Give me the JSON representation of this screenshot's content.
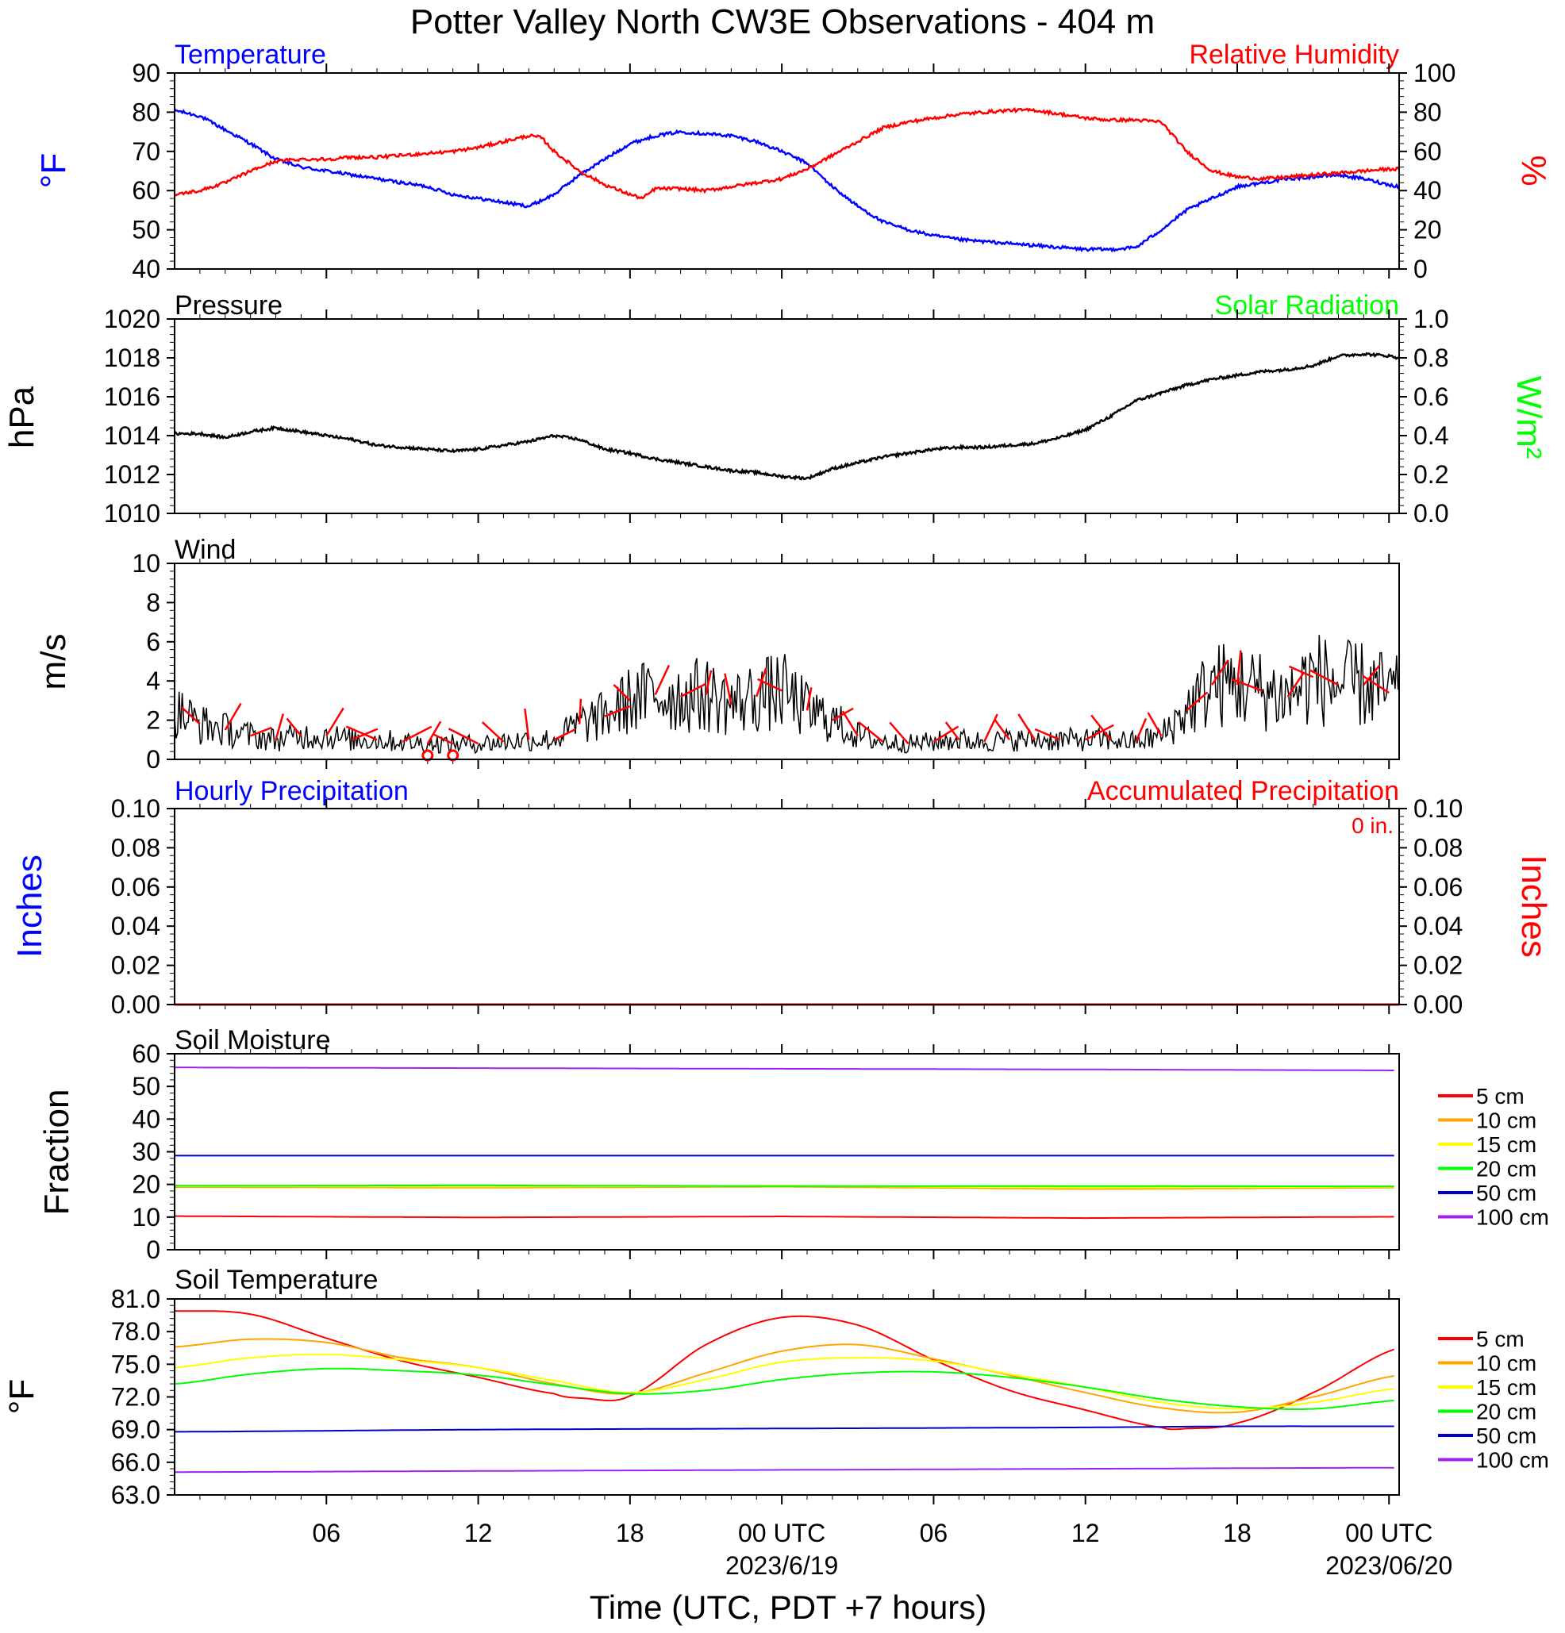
{
  "title": "Potter Valley North CW3E Observations - 404 m",
  "xlabel": "Time (UTC, PDT +7 hours)",
  "x_ticks": [
    {
      "hour": 6,
      "label": "06"
    },
    {
      "hour": 12,
      "label": "12"
    },
    {
      "hour": 18,
      "label": "18"
    },
    {
      "hour": 24,
      "label": "00 UTC"
    },
    {
      "hour": 30,
      "label": "06"
    },
    {
      "hour": 36,
      "label": "12"
    },
    {
      "hour": 42,
      "label": "18"
    },
    {
      "hour": 48,
      "label": "00 UTC"
    }
  ],
  "date_labels": [
    {
      "hour": 24,
      "label": "2023/6/19"
    },
    {
      "hour": 48,
      "label": "2023/06/20"
    }
  ],
  "colors": {
    "temperature": "#0000ff",
    "humidity": "#ff0000",
    "pressure": "#000000",
    "solar": "#00ff00",
    "wind_barb": "#ff0000",
    "hourly_precip": "#0000ff",
    "accum_precip": "#ff0000"
  },
  "panels": {
    "temp_rh": {
      "left_title": "Temperature",
      "right_title": "Relative Humidity",
      "left_axis_label": "°F",
      "right_axis_label": "%",
      "left_ticks": [
        "40",
        "50",
        "60",
        "70",
        "80",
        "90"
      ],
      "right_ticks": [
        "0",
        "20",
        "40",
        "60",
        "80",
        "100"
      ]
    },
    "pressure": {
      "left_title": "Pressure",
      "right_title": "Solar Radiation",
      "left_axis_label": "hPa",
      "right_axis_label": "W/m²",
      "left_ticks": [
        "1010",
        "1012",
        "1014",
        "1016",
        "1018",
        "1020"
      ],
      "right_ticks": [
        "0.0",
        "0.2",
        "0.4",
        "0.6",
        "0.8",
        "1.0"
      ]
    },
    "wind": {
      "left_title": "Wind",
      "left_axis_label": "m/s",
      "left_ticks": [
        "0",
        "2",
        "4",
        "6",
        "8",
        "10"
      ]
    },
    "precip": {
      "left_title": "Hourly Precipitation",
      "right_title": "Accumulated Precipitation",
      "accum_total": "0 in.",
      "left_axis_label": "Inches",
      "right_axis_label": "Inches",
      "left_ticks": [
        "0.00",
        "0.02",
        "0.04",
        "0.06",
        "0.08",
        "0.10"
      ],
      "right_ticks": [
        "0.00",
        "0.02",
        "0.04",
        "0.06",
        "0.08",
        "0.10"
      ]
    },
    "soil_moisture": {
      "left_title": "Soil Moisture",
      "left_axis_label": "Fraction",
      "left_ticks": [
        "0",
        "10",
        "20",
        "30",
        "40",
        "50",
        "60"
      ],
      "legend": [
        {
          "label": "5 cm",
          "color": "#ff0000"
        },
        {
          "label": "10 cm",
          "color": "#ffa500"
        },
        {
          "label": "15 cm",
          "color": "#ffff00"
        },
        {
          "label": "20 cm",
          "color": "#00ff00"
        },
        {
          "label": "50 cm",
          "color": "#0000cd"
        },
        {
          "label": "100 cm",
          "color": "#a020f0"
        }
      ]
    },
    "soil_temp": {
      "left_title": "Soil Temperature",
      "left_axis_label": "°F",
      "left_ticks": [
        "63.0",
        "66.0",
        "69.0",
        "72.0",
        "75.0",
        "78.0",
        "81.0"
      ],
      "legend": [
        {
          "label": "5 cm",
          "color": "#ff0000"
        },
        {
          "label": "10 cm",
          "color": "#ffa500"
        },
        {
          "label": "15 cm",
          "color": "#ffff00"
        },
        {
          "label": "20 cm",
          "color": "#00ff00"
        },
        {
          "label": "50 cm",
          "color": "#0000cd"
        },
        {
          "label": "100 cm",
          "color": "#a020f0"
        }
      ]
    }
  },
  "chart_data": [
    {
      "type": "line",
      "title": "Temperature / Relative Humidity",
      "x_range_hours": [
        0,
        48.4
      ],
      "ylim_left": [
        40,
        90
      ],
      "ylim_right": [
        0,
        100
      ],
      "series": [
        {
          "name": "Temperature",
          "axis": "left",
          "unit": "°F",
          "color": "#0000ff",
          "x": [
            0,
            1,
            2,
            3,
            4,
            5,
            6,
            7,
            8,
            9,
            10,
            11,
            12,
            13,
            14,
            15,
            16,
            17,
            18,
            19,
            20,
            21,
            22,
            23,
            24,
            25,
            26,
            27,
            28,
            29,
            30,
            31,
            32,
            33,
            34,
            35,
            36,
            37,
            38,
            39,
            40,
            41,
            42,
            43,
            44,
            45,
            46,
            47,
            48,
            48.4
          ],
          "y": [
            80.5,
            79,
            75.5,
            72,
            68,
            66,
            65,
            64,
            63,
            62,
            61,
            59,
            58,
            57,
            56,
            59,
            64,
            68,
            72,
            74,
            75,
            74.5,
            74,
            72.5,
            70,
            67,
            61,
            56,
            52,
            50,
            48.5,
            47.5,
            47,
            46.5,
            46,
            45.5,
            45,
            45,
            45.5,
            50,
            55,
            58,
            61,
            62,
            63,
            63.5,
            64,
            63,
            61.5,
            61
          ]
        },
        {
          "name": "Relative Humidity",
          "axis": "right",
          "unit": "%",
          "color": "#ff0000",
          "x": [
            0,
            1,
            2,
            3,
            4,
            5,
            6,
            7,
            8,
            9,
            10,
            11,
            12,
            13,
            14,
            14.5,
            15,
            16,
            17,
            18,
            18.5,
            19,
            20,
            21,
            22,
            23,
            24,
            25,
            26,
            27,
            28,
            29,
            30,
            31,
            32,
            33,
            34,
            35,
            36,
            37,
            38,
            39,
            40,
            41,
            42,
            43,
            44,
            45,
            46,
            47,
            48,
            48.4
          ],
          "y": [
            38,
            40,
            44,
            50,
            55,
            56,
            56,
            57,
            57,
            58,
            59,
            60,
            62,
            65,
            68,
            67,
            60,
            50,
            43,
            38,
            36,
            41,
            41,
            40,
            42,
            44,
            46,
            51,
            58,
            65,
            72,
            75,
            77,
            79,
            80,
            81,
            81,
            79,
            77,
            76,
            76,
            75,
            60,
            50,
            47,
            46,
            47,
            48,
            49,
            50,
            51,
            51
          ]
        }
      ]
    },
    {
      "type": "line",
      "title": "Pressure / Solar Radiation",
      "x_range_hours": [
        0,
        48.4
      ],
      "ylim_left": [
        1010,
        1020
      ],
      "ylim_right": [
        0.0,
        1.0
      ],
      "series": [
        {
          "name": "Pressure",
          "axis": "left",
          "unit": "hPa",
          "color": "#000000",
          "x": [
            0,
            1,
            2,
            3,
            4,
            5,
            6,
            7,
            8,
            9,
            10,
            11,
            12,
            13,
            14,
            15,
            16,
            17,
            18,
            19,
            20,
            21,
            22,
            23,
            24,
            25,
            26,
            27,
            28,
            29,
            30,
            31,
            32,
            33,
            34,
            35,
            36,
            37,
            38,
            39,
            40,
            41,
            42,
            43,
            44,
            45,
            46,
            47,
            48,
            48.4
          ],
          "y": [
            1014.1,
            1014.1,
            1013.9,
            1014.2,
            1014.4,
            1014.2,
            1014.0,
            1013.8,
            1013.5,
            1013.4,
            1013.3,
            1013.2,
            1013.3,
            1013.5,
            1013.7,
            1014.0,
            1013.8,
            1013.3,
            1013.1,
            1012.8,
            1012.6,
            1012.4,
            1012.2,
            1012.1,
            1011.9,
            1011.8,
            1012.3,
            1012.6,
            1012.9,
            1013.1,
            1013.3,
            1013.4,
            1013.4,
            1013.5,
            1013.6,
            1013.9,
            1014.3,
            1015.0,
            1015.8,
            1016.2,
            1016.6,
            1016.9,
            1017.1,
            1017.3,
            1017.4,
            1017.6,
            1018.1,
            1018.2,
            1018.1,
            1018.0
          ]
        }
      ]
    },
    {
      "type": "line",
      "title": "Wind",
      "x_range_hours": [
        0,
        48.4
      ],
      "ylim": [
        0,
        10
      ],
      "series": [
        {
          "name": "Wind Speed",
          "unit": "m/s",
          "color": "#000000",
          "x": [
            0,
            1,
            2,
            3,
            4,
            5,
            6,
            7,
            8,
            9,
            10,
            11,
            12,
            13,
            14,
            15,
            16,
            17,
            18,
            19,
            20,
            21,
            22,
            23,
            24,
            25,
            26,
            27,
            28,
            29,
            30,
            31,
            32,
            33,
            34,
            35,
            36,
            37,
            38,
            39,
            40,
            41,
            42,
            43,
            44,
            45,
            46,
            47,
            48,
            48.4
          ],
          "y": [
            2.5,
            1.8,
            1.5,
            1.2,
            1.0,
            1.2,
            1.2,
            1.0,
            1.0,
            0.9,
            0.8,
            0.8,
            0.8,
            0.9,
            1.0,
            1.0,
            1.8,
            2.2,
            3.0,
            3.3,
            3.2,
            3.3,
            2.8,
            3.2,
            3.5,
            2.5,
            2.0,
            1.2,
            0.9,
            0.8,
            0.9,
            1.0,
            0.9,
            1.0,
            1.0,
            1.0,
            1.0,
            1.0,
            0.9,
            1.2,
            2.5,
            3.8,
            3.8,
            3.5,
            3.2,
            4.2,
            3.8,
            3.8,
            3.4,
            3.3
          ]
        }
      ],
      "calm_markers_hours": [
        10,
        11
      ]
    },
    {
      "type": "bar",
      "title": "Hourly Precipitation / Accumulated Precipitation",
      "x_range_hours": [
        0,
        48.4
      ],
      "ylim_left": [
        0,
        0.1
      ],
      "ylim_right": [
        0,
        0.1
      ],
      "series": [
        {
          "name": "Hourly Precipitation",
          "axis": "left",
          "unit": "in",
          "color": "#0000ff",
          "values": "all 0"
        },
        {
          "name": "Accumulated Precipitation",
          "axis": "right",
          "unit": "in",
          "color": "#ff0000",
          "x": [
            0,
            48.4
          ],
          "y": [
            0,
            0
          ]
        }
      ]
    },
    {
      "type": "line",
      "title": "Soil Moisture",
      "x_range_hours": [
        0,
        48.4
      ],
      "ylim": [
        0,
        60
      ],
      "series": [
        {
          "name": "5 cm",
          "color": "#ff0000",
          "x": [
            0,
            12,
            24,
            36,
            48.4
          ],
          "y": [
            10.3,
            9.9,
            10.2,
            9.7,
            10.1
          ]
        },
        {
          "name": "10 cm",
          "color": "#ffa500",
          "x": [
            0,
            12,
            24,
            36,
            48.4
          ],
          "y": [
            19.2,
            19.0,
            19.3,
            18.6,
            19.0
          ]
        },
        {
          "name": "15 cm",
          "color": "#ffff00",
          "x": [
            0,
            12,
            24,
            36,
            48.4
          ],
          "y": [
            19.5,
            19.3,
            19.6,
            19.0,
            19.3
          ]
        },
        {
          "name": "20 cm",
          "color": "#00ff00",
          "x": [
            0,
            12,
            24,
            36,
            48.4
          ],
          "y": [
            19.6,
            19.7,
            19.5,
            19.5,
            19.4
          ]
        },
        {
          "name": "50 cm",
          "color": "#0000cd",
          "x": [
            0,
            12,
            24,
            36,
            48.4
          ],
          "y": [
            28.8,
            28.8,
            28.8,
            28.8,
            28.8
          ]
        },
        {
          "name": "100 cm",
          "color": "#a020f0",
          "x": [
            0,
            12,
            24,
            36,
            48.4
          ],
          "y": [
            55.8,
            55.6,
            55.4,
            55.2,
            54.9
          ]
        }
      ]
    },
    {
      "type": "line",
      "title": "Soil Temperature",
      "x_range_hours": [
        0,
        48.4
      ],
      "ylim": [
        63.0,
        81.0
      ],
      "series": [
        {
          "name": "5 cm",
          "color": "#ff0000",
          "x": [
            0,
            3,
            6,
            9,
            12,
            15,
            16,
            18,
            21,
            24,
            27,
            30,
            33,
            36,
            39,
            40,
            42,
            45,
            48.4
          ],
          "y": [
            79.9,
            79.6,
            77.4,
            75.3,
            73.8,
            72.3,
            71.9,
            72.1,
            76.8,
            79.3,
            78.6,
            75.4,
            72.6,
            70.8,
            69.2,
            69.1,
            69.6,
            72.4,
            76.5
          ]
        },
        {
          "name": "10 cm",
          "color": "#ffa500",
          "x": [
            0,
            3,
            6,
            9,
            12,
            15,
            18,
            21,
            24,
            27,
            30,
            33,
            36,
            39,
            42,
            45,
            48.4
          ],
          "y": [
            76.6,
            77.3,
            77.0,
            75.6,
            74.7,
            73.2,
            72.3,
            74.2,
            76.2,
            76.8,
            75.5,
            74.0,
            72.4,
            71.0,
            70.6,
            72.0,
            74.0
          ]
        },
        {
          "name": "15 cm",
          "color": "#ffff00",
          "x": [
            0,
            3,
            6,
            9,
            12,
            15,
            18,
            21,
            24,
            27,
            30,
            33,
            36,
            39,
            42,
            45,
            48.4
          ],
          "y": [
            74.7,
            75.6,
            75.9,
            75.4,
            74.7,
            73.5,
            72.4,
            73.6,
            75.2,
            75.6,
            75.3,
            74.1,
            72.9,
            71.5,
            70.9,
            71.5,
            72.8
          ]
        },
        {
          "name": "20 cm",
          "color": "#00ff00",
          "x": [
            0,
            3,
            6,
            9,
            12,
            15,
            18,
            21,
            24,
            27,
            30,
            33,
            36,
            39,
            42,
            45,
            48.4
          ],
          "y": [
            73.2,
            74.1,
            74.6,
            74.4,
            74.0,
            73.1,
            72.3,
            72.6,
            73.6,
            74.2,
            74.3,
            73.8,
            72.9,
            71.8,
            71.1,
            70.9,
            71.7
          ]
        },
        {
          "name": "50 cm",
          "color": "#0000cd",
          "x": [
            0,
            12,
            24,
            36,
            42,
            48.4
          ],
          "y": [
            68.8,
            69.0,
            69.1,
            69.2,
            69.3,
            69.3
          ]
        },
        {
          "name": "100 cm",
          "color": "#a020f0",
          "x": [
            0,
            12,
            24,
            36,
            48.4
          ],
          "y": [
            65.1,
            65.2,
            65.3,
            65.4,
            65.5
          ]
        }
      ]
    }
  ]
}
